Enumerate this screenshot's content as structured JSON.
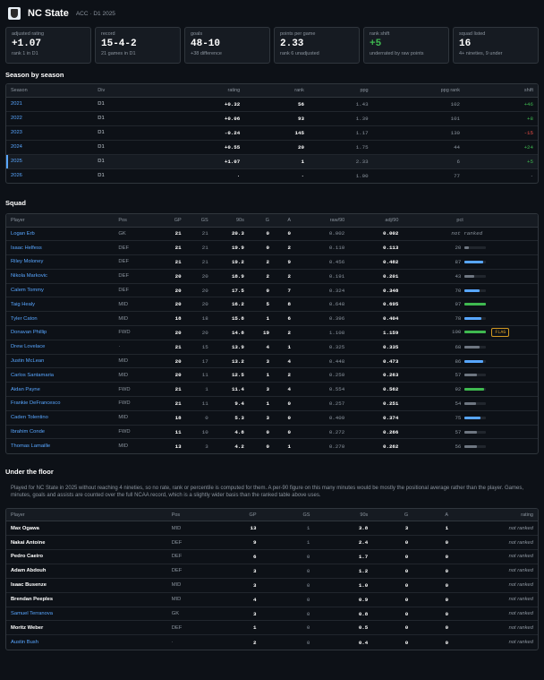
{
  "header": {
    "title": "NC State",
    "subtitle": "ACC · D1 2025"
  },
  "cards": [
    {
      "label": "adjusted rating",
      "value": "+1.07",
      "sub": "rank 1 in D1",
      "green": false
    },
    {
      "label": "record",
      "value": "15-4-2",
      "sub": "21 games in D1",
      "green": false
    },
    {
      "label": "goals",
      "value": "48-10",
      "sub": "+38 difference",
      "green": false
    },
    {
      "label": "points per game",
      "value": "2.33",
      "sub": "rank 6 unadjusted",
      "green": false
    },
    {
      "label": "rank shift",
      "value": "+5",
      "sub": "underrated by raw points",
      "green": true
    },
    {
      "label": "squad listed",
      "value": "16",
      "sub": "4+ nineties, 9 under",
      "green": false
    }
  ],
  "season": {
    "heading": "Season by season",
    "columns": [
      "Season",
      "Div",
      "rating",
      "rank",
      "ppg",
      "ppg rank",
      "shift"
    ],
    "rows": [
      {
        "season": "2021",
        "div": "D1",
        "rating": "+0.32",
        "rank": "56",
        "ppg": "1.43",
        "ppg_rank": "102",
        "shift": "+46",
        "shift_dir": "pos",
        "current": false
      },
      {
        "season": "2022",
        "div": "D1",
        "rating": "+0.06",
        "rank": "93",
        "ppg": "1.39",
        "ppg_rank": "101",
        "shift": "+8",
        "shift_dir": "pos",
        "current": false
      },
      {
        "season": "2023",
        "div": "D1",
        "rating": "-0.24",
        "rank": "145",
        "ppg": "1.17",
        "ppg_rank": "130",
        "shift": "-15",
        "shift_dir": "neg",
        "current": false
      },
      {
        "season": "2024",
        "div": "D1",
        "rating": "+0.55",
        "rank": "20",
        "ppg": "1.75",
        "ppg_rank": "44",
        "shift": "+24",
        "shift_dir": "pos",
        "current": false
      },
      {
        "season": "2025",
        "div": "D1",
        "rating": "+1.07",
        "rank": "1",
        "ppg": "2.33",
        "ppg_rank": "6",
        "shift": "+5",
        "shift_dir": "pos",
        "current": true
      },
      {
        "season": "2026",
        "div": "D1",
        "rating": "·",
        "rank": "·",
        "ppg": "1.00",
        "ppg_rank": "77",
        "shift": "·",
        "shift_dir": "none",
        "current": false
      }
    ]
  },
  "squad": {
    "heading": "Squad",
    "columns": [
      "Player",
      "Pos",
      "GP",
      "GS",
      "90s",
      "G",
      "A",
      "raw/90",
      "adj/90",
      "pct"
    ],
    "rows": [
      {
        "player": "Logan Erb",
        "pos": "GK",
        "gp": "21",
        "gs": "21",
        "n90": "20.3",
        "g": "0",
        "a": "0",
        "raw": "0.002",
        "adj": "0.002",
        "pct": "not ranked",
        "pct_val": null,
        "bar_color": "",
        "flag": ""
      },
      {
        "player": "Isaac Helfess",
        "pos": "DEF",
        "gp": "21",
        "gs": "21",
        "n90": "19.9",
        "g": "0",
        "a": "2",
        "raw": "0.110",
        "adj": "0.113",
        "pct": "20",
        "pct_val": 20,
        "bar_color": "#6e7681",
        "flag": ""
      },
      {
        "player": "Riley Moloney",
        "pos": "DEF",
        "gp": "21",
        "gs": "21",
        "n90": "19.2",
        "g": "2",
        "a": "9",
        "raw": "0.456",
        "adj": "0.482",
        "pct": "87",
        "pct_val": 87,
        "bar_color": "#58a6ff",
        "flag": ""
      },
      {
        "player": "Nikola Markovic",
        "pos": "DEF",
        "gp": "20",
        "gs": "20",
        "n90": "18.9",
        "g": "2",
        "a": "2",
        "raw": "0.191",
        "adj": "0.201",
        "pct": "43",
        "pct_val": 43,
        "bar_color": "#6e7681",
        "flag": ""
      },
      {
        "player": "Calem Tommy",
        "pos": "DEF",
        "gp": "20",
        "gs": "20",
        "n90": "17.5",
        "g": "0",
        "a": "7",
        "raw": "0.324",
        "adj": "0.348",
        "pct": "70",
        "pct_val": 70,
        "bar_color": "#58a6ff",
        "flag": ""
      },
      {
        "player": "Taig Healy",
        "pos": "MID",
        "gp": "20",
        "gs": "20",
        "n90": "16.2",
        "g": "5",
        "a": "8",
        "raw": "0.648",
        "adj": "0.695",
        "pct": "97",
        "pct_val": 97,
        "bar_color": "#3fb950",
        "flag": ""
      },
      {
        "player": "Tyler Caton",
        "pos": "MID",
        "gp": "18",
        "gs": "18",
        "n90": "15.8",
        "g": "1",
        "a": "6",
        "raw": "0.396",
        "adj": "0.404",
        "pct": "78",
        "pct_val": 78,
        "bar_color": "#58a6ff",
        "flag": ""
      },
      {
        "player": "Donavan Phillip",
        "pos": "FWD",
        "gp": "20",
        "gs": "20",
        "n90": "14.8",
        "g": "19",
        "a": "2",
        "raw": "1.108",
        "adj": "1.159",
        "pct": "100",
        "pct_val": 100,
        "bar_color": "#3fb950",
        "flag": "FLAG"
      },
      {
        "player": "Drew Lovelace",
        "pos": "·",
        "gp": "21",
        "gs": "15",
        "n90": "13.9",
        "g": "4",
        "a": "1",
        "raw": "0.325",
        "adj": "0.335",
        "pct": "68",
        "pct_val": 68,
        "bar_color": "#6e7681",
        "flag": ""
      },
      {
        "player": "Justin McLean",
        "pos": "MID",
        "gp": "20",
        "gs": "17",
        "n90": "13.2",
        "g": "3",
        "a": "4",
        "raw": "0.448",
        "adj": "0.473",
        "pct": "86",
        "pct_val": 86,
        "bar_color": "#58a6ff",
        "flag": ""
      },
      {
        "player": "Carlos Santamaria",
        "pos": "MID",
        "gp": "20",
        "gs": "11",
        "n90": "12.5",
        "g": "1",
        "a": "2",
        "raw": "0.250",
        "adj": "0.263",
        "pct": "57",
        "pct_val": 57,
        "bar_color": "#6e7681",
        "flag": ""
      },
      {
        "player": "Aidan Payne",
        "pos": "FWD",
        "gp": "21",
        "gs": "1",
        "n90": "11.4",
        "g": "3",
        "a": "4",
        "raw": "0.554",
        "adj": "0.562",
        "pct": "92",
        "pct_val": 92,
        "bar_color": "#3fb950",
        "flag": ""
      },
      {
        "player": "Frankie DeFrancesco",
        "pos": "FWD",
        "gp": "21",
        "gs": "11",
        "n90": "9.4",
        "g": "1",
        "a": "0",
        "raw": "0.257",
        "adj": "0.251",
        "pct": "54",
        "pct_val": 54,
        "bar_color": "#6e7681",
        "flag": ""
      },
      {
        "player": "Caden Tolentino",
        "pos": "MID",
        "gp": "18",
        "gs": "0",
        "n90": "5.3",
        "g": "3",
        "a": "0",
        "raw": "0.409",
        "adj": "0.374",
        "pct": "75",
        "pct_val": 75,
        "bar_color": "#58a6ff",
        "flag": ""
      },
      {
        "player": "Ibrahim Conde",
        "pos": "FWD",
        "gp": "11",
        "gs": "10",
        "n90": "4.8",
        "g": "0",
        "a": "0",
        "raw": "0.272",
        "adj": "0.266",
        "pct": "57",
        "pct_val": 57,
        "bar_color": "#6e7681",
        "flag": ""
      },
      {
        "player": "Thomas Lamaille",
        "pos": "MID",
        "gp": "13",
        "gs": "3",
        "n90": "4.2",
        "g": "0",
        "a": "1",
        "raw": "0.270",
        "adj": "0.262",
        "pct": "56",
        "pct_val": 56,
        "bar_color": "#6e7681",
        "flag": ""
      }
    ]
  },
  "floor": {
    "heading": "Under the floor",
    "note": "Played for NC State in 2025 without reaching 4 nineties, so no rate, rank or percentile is computed for them. A per-90 figure on this many minutes would be mostly the positional average rather than the player. Games, minutes, goals and assists are counted over the full NCAA record, which is a slightly wider basis than the ranked table above uses.",
    "columns": [
      "Player",
      "Pos",
      "GP",
      "GS",
      "90s",
      "G",
      "A",
      "rating"
    ],
    "rows": [
      {
        "player": "Max Ogawa",
        "pos": "MID",
        "gp": "13",
        "gs": "1",
        "n90": "3.8",
        "g": "3",
        "a": "1",
        "rating": "not ranked",
        "link": false
      },
      {
        "player": "Nakai Antoine",
        "pos": "DEF",
        "gp": "9",
        "gs": "1",
        "n90": "2.4",
        "g": "0",
        "a": "0",
        "rating": "not ranked",
        "link": false
      },
      {
        "player": "Pedro Caeiro",
        "pos": "DEF",
        "gp": "6",
        "gs": "0",
        "n90": "1.7",
        "g": "0",
        "a": "0",
        "rating": "not ranked",
        "link": false
      },
      {
        "player": "Adam Abdouh",
        "pos": "DEF",
        "gp": "3",
        "gs": "0",
        "n90": "1.2",
        "g": "0",
        "a": "0",
        "rating": "not ranked",
        "link": false
      },
      {
        "player": "Isaac Busenze",
        "pos": "MID",
        "gp": "3",
        "gs": "0",
        "n90": "1.0",
        "g": "0",
        "a": "0",
        "rating": "not ranked",
        "link": false
      },
      {
        "player": "Brendan Peeples",
        "pos": "MID",
        "gp": "4",
        "gs": "0",
        "n90": "0.9",
        "g": "0",
        "a": "0",
        "rating": "not ranked",
        "link": false
      },
      {
        "player": "Samuel Terranova",
        "pos": "GK",
        "gp": "3",
        "gs": "0",
        "n90": "0.8",
        "g": "0",
        "a": "0",
        "rating": "not ranked",
        "link": true
      },
      {
        "player": "Moritz Weber",
        "pos": "DEF",
        "gp": "1",
        "gs": "0",
        "n90": "0.5",
        "g": "0",
        "a": "0",
        "rating": "not ranked",
        "link": false
      },
      {
        "player": "Austin Bush",
        "pos": "·",
        "gp": "2",
        "gs": "0",
        "n90": "0.4",
        "g": "0",
        "a": "0",
        "rating": "not ranked",
        "link": true
      }
    ]
  }
}
